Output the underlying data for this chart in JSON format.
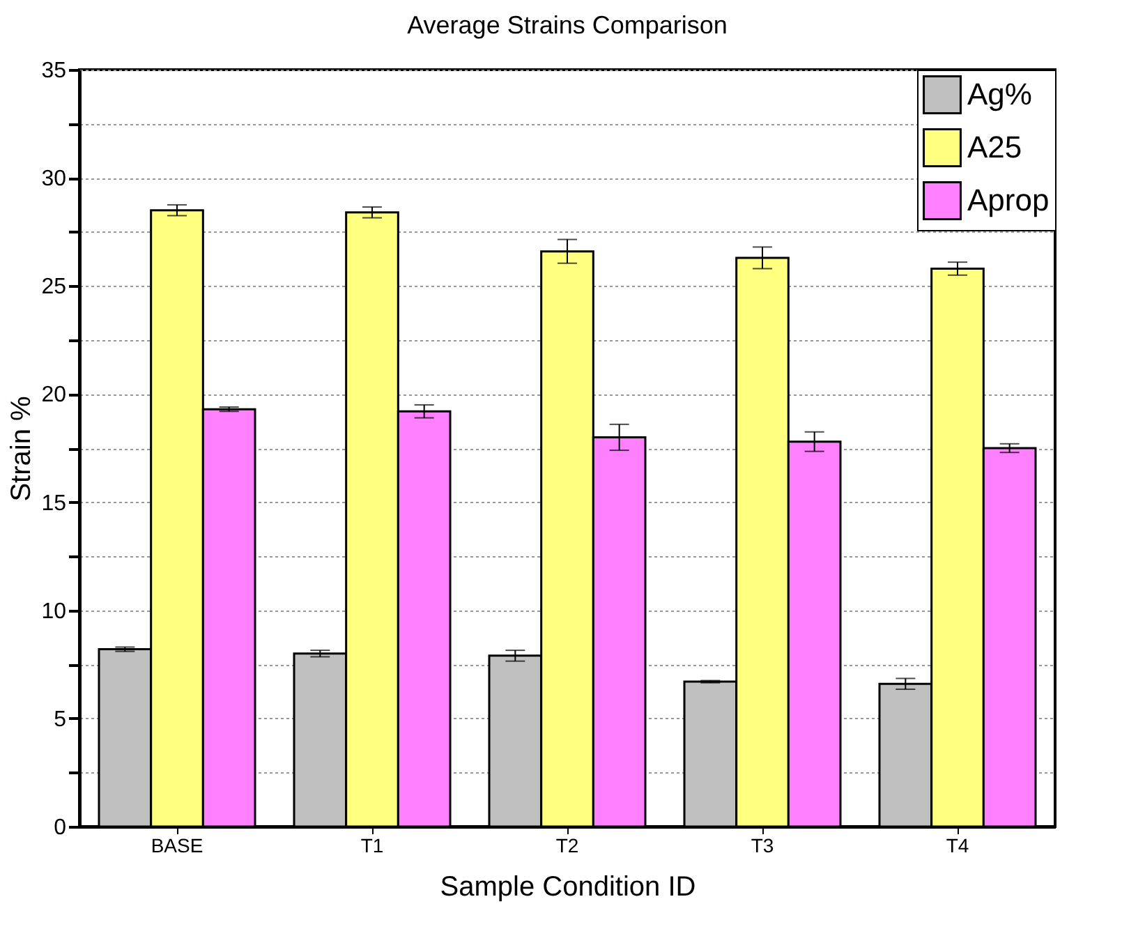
{
  "chart_data": {
    "type": "bar",
    "title": "Average Strains Comparison",
    "xlabel": "Sample Condition ID",
    "ylabel": "Strain %",
    "categories": [
      "BASE",
      "T1",
      "T2",
      "T3",
      "T4"
    ],
    "series": [
      {
        "name": "Ag%",
        "color": "#c0c0c0",
        "values": [
          8.2,
          8.0,
          7.9,
          6.7,
          6.6
        ],
        "errors": [
          0.1,
          0.15,
          0.25,
          0.05,
          0.25
        ]
      },
      {
        "name": "A25",
        "color": "#ffff80",
        "values": [
          28.5,
          28.4,
          26.6,
          26.3,
          25.8
        ],
        "errors": [
          0.25,
          0.25,
          0.55,
          0.5,
          0.3
        ]
      },
      {
        "name": "Aprop",
        "color": "#ff80ff",
        "values": [
          19.3,
          19.2,
          18.0,
          17.8,
          17.5
        ],
        "errors": [
          0.1,
          0.3,
          0.6,
          0.45,
          0.2
        ]
      }
    ],
    "ylim": [
      0,
      35
    ],
    "yticks": [
      0,
      {
        "value": 2.5,
        "label": null
      },
      5,
      {
        "value": 7.5,
        "label": null
      },
      10,
      {
        "value": 12.5,
        "label": null
      },
      15,
      {
        "value": 17.5,
        "label": null
      },
      20,
      {
        "value": 22.5,
        "label": null
      },
      25,
      {
        "value": 27.5,
        "label": null
      },
      30,
      {
        "value": 32.5,
        "label": null
      },
      35
    ],
    "grid": "y",
    "legend": "top right"
  }
}
